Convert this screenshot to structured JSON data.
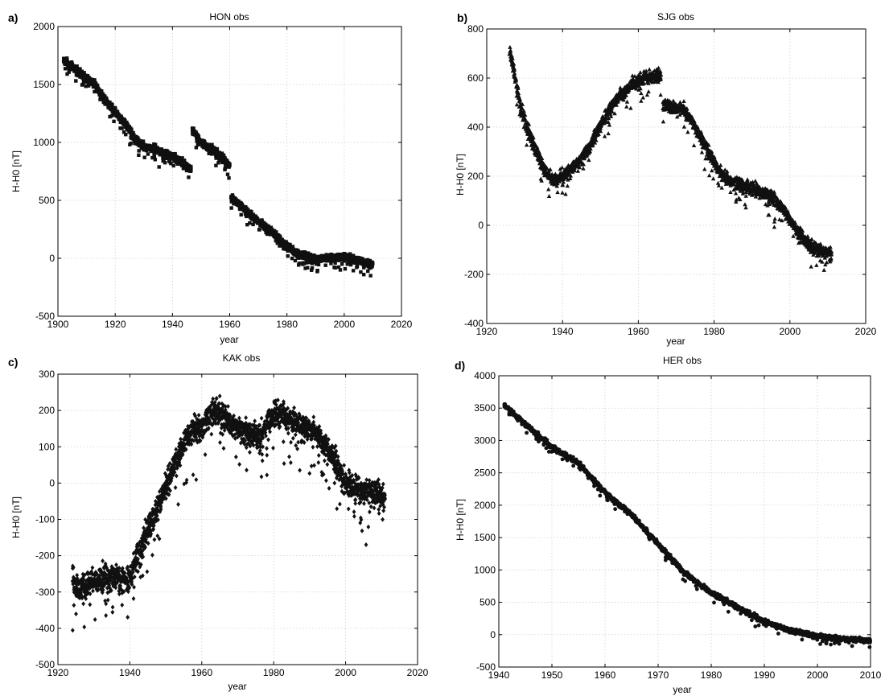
{
  "chart_data": [
    {
      "type": "scatter",
      "panel_label": "a)",
      "title": "HON obs",
      "xlabel": "year",
      "ylabel": "H-H0 [nT]",
      "xlim": [
        1900,
        2020
      ],
      "ylim": [
        -500,
        2000
      ],
      "xticks": [
        1900,
        1920,
        1940,
        1960,
        1980,
        2000,
        2020
      ],
      "yticks": [
        -500,
        0,
        500,
        1000,
        1500,
        2000
      ],
      "marker": "square",
      "grid": true,
      "segments": [
        {
          "x": [
            1902,
            1905,
            1910,
            1913,
            1916,
            1920,
            1924,
            1927,
            1930,
            1935,
            1940,
            1944,
            1946.5
          ],
          "y": [
            1710,
            1650,
            1560,
            1500,
            1380,
            1260,
            1150,
            1020,
            970,
            930,
            880,
            820,
            760
          ]
        },
        {
          "x": [
            1947,
            1950,
            1955,
            1958,
            1960
          ],
          "y": [
            1100,
            1000,
            920,
            850,
            790
          ]
        },
        {
          "x": [
            1960.5,
            1963,
            1966,
            1970,
            1975,
            1980,
            1983,
            1986,
            1990,
            1995,
            2000,
            2005,
            2010
          ],
          "y": [
            520,
            470,
            400,
            320,
            220,
            110,
            50,
            20,
            -10,
            0,
            10,
            -20,
            -60
          ]
        }
      ],
      "spread": 30
    },
    {
      "type": "scatter",
      "panel_label": "b)",
      "title": "SJG obs",
      "xlabel": "year",
      "ylabel": "H-H0 [nT]",
      "xlim": [
        1920,
        2020
      ],
      "ylim": [
        -400,
        800
      ],
      "xticks": [
        1920,
        1940,
        1960,
        1980,
        2000,
        2020
      ],
      "yticks": [
        -400,
        -200,
        0,
        200,
        400,
        600,
        800
      ],
      "marker": "triangle",
      "grid": true,
      "segments": [
        {
          "x": [
            1926,
            1927,
            1929,
            1932,
            1935,
            1938,
            1940,
            1943,
            1947,
            1950,
            1954,
            1958,
            1962,
            1966
          ],
          "y": [
            710,
            640,
            480,
            340,
            230,
            180,
            200,
            240,
            320,
            410,
            510,
            570,
            600,
            610
          ]
        },
        {
          "x": [
            1966.5,
            1969,
            1972,
            1975,
            1978,
            1981,
            1984,
            1988,
            1992,
            1995,
            1998,
            2001,
            2004,
            2007,
            2011
          ],
          "y": [
            490,
            480,
            470,
            400,
            310,
            230,
            180,
            160,
            140,
            120,
            70,
            0,
            -60,
            -100,
            -110
          ]
        }
      ],
      "spread": 25
    },
    {
      "type": "scatter",
      "panel_label": "c)",
      "title": "KAK obs",
      "xlabel": "year",
      "ylabel": "H-H0 [nT]",
      "xlim": [
        1920,
        2020
      ],
      "ylim": [
        -500,
        300
      ],
      "xticks": [
        1920,
        1940,
        1960,
        1980,
        2000,
        2020
      ],
      "yticks": [
        -500,
        -400,
        -300,
        -200,
        -100,
        0,
        100,
        200,
        300
      ],
      "marker": "diamond",
      "grid": true,
      "segments": [
        {
          "x": [
            1924,
            1926,
            1930,
            1935,
            1940,
            1942,
            1945,
            1948,
            1952,
            1956,
            1960,
            1964,
            1968,
            1972,
            1976,
            1980,
            1984,
            1988,
            1992,
            1996,
            2000,
            2004,
            2008,
            2011
          ],
          "y": [
            -270,
            -290,
            -270,
            -260,
            -270,
            -200,
            -130,
            -60,
            40,
            130,
            160,
            200,
            160,
            140,
            130,
            190,
            180,
            160,
            130,
            80,
            0,
            -20,
            -30,
            -40
          ]
        }
      ],
      "spread": 35
    },
    {
      "type": "scatter",
      "panel_label": "d)",
      "title": "HER obs",
      "xlabel": "year",
      "ylabel": "H-H0 [nT]",
      "xlim": [
        1940,
        2010
      ],
      "ylim": [
        -500,
        4000
      ],
      "xticks": [
        1940,
        1950,
        1960,
        1970,
        1980,
        1990,
        2000,
        2010
      ],
      "yticks": [
        -500,
        0,
        500,
        1000,
        1500,
        2000,
        2500,
        3000,
        3500,
        4000
      ],
      "marker": "circle",
      "grid": true,
      "segments": [
        {
          "x": [
            1941,
            1945,
            1950,
            1955,
            1960,
            1965,
            1970,
            1975,
            1980,
            1985,
            1990,
            1995,
            2000,
            2005,
            2010
          ],
          "y": [
            3550,
            3250,
            2900,
            2650,
            2200,
            1850,
            1400,
            950,
            650,
            420,
            200,
            60,
            -20,
            -70,
            -90
          ]
        }
      ],
      "spread": 35
    }
  ]
}
